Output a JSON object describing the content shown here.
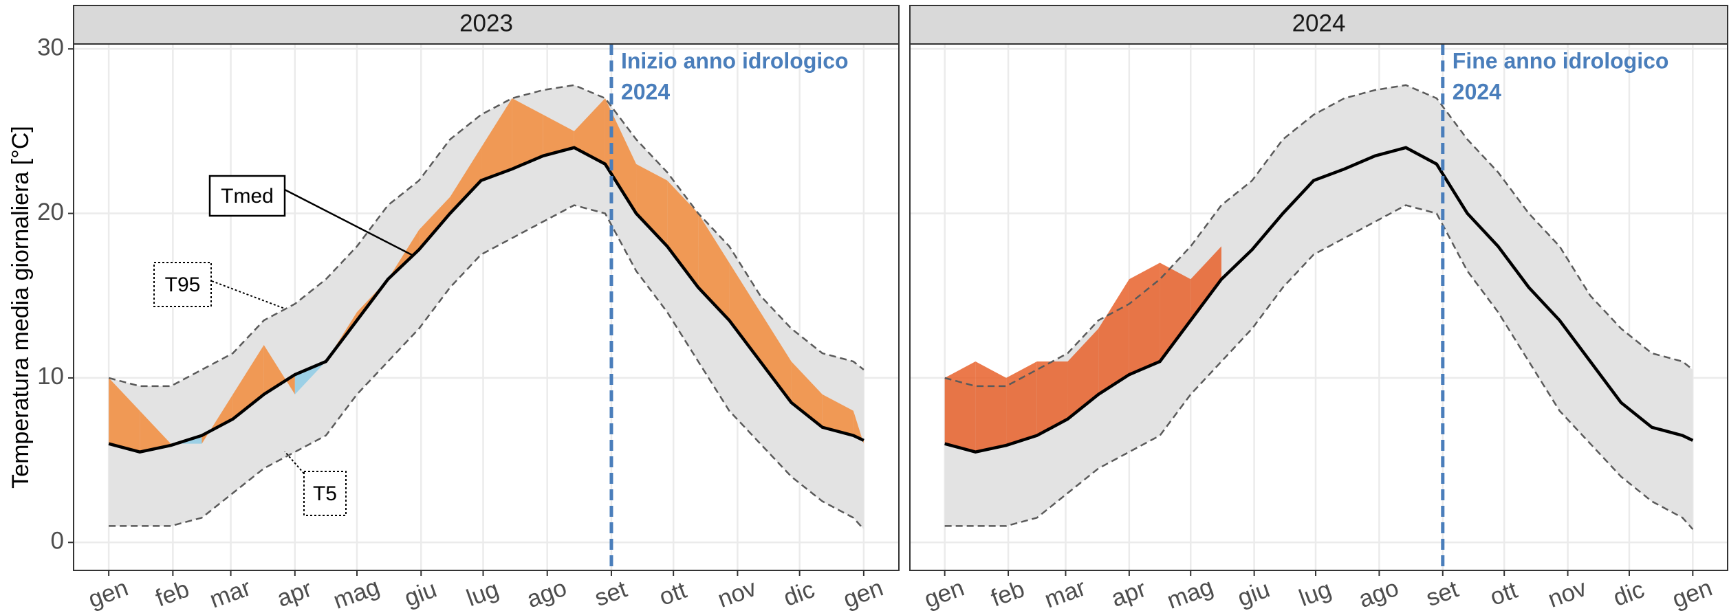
{
  "chart_data": [
    {
      "type": "line",
      "title": "2023",
      "ylabel": "Temperatura media giornaliera [°C]",
      "x": [
        0,
        15,
        30,
        45,
        60,
        75,
        90,
        105,
        120,
        135,
        150,
        165,
        180,
        195,
        210,
        225,
        240,
        255,
        270,
        285,
        300,
        315,
        330,
        345,
        360,
        365
      ],
      "xlim": [
        -17,
        382
      ],
      "xticks": [
        {
          "value": 0,
          "label": "gen"
        },
        {
          "value": 31,
          "label": "feb"
        },
        {
          "value": 59,
          "label": "mar"
        },
        {
          "value": 90,
          "label": "apr"
        },
        {
          "value": 120,
          "label": "mag"
        },
        {
          "value": 151,
          "label": "giu"
        },
        {
          "value": 181,
          "label": "lug"
        },
        {
          "value": 212,
          "label": "ago"
        },
        {
          "value": 243,
          "label": "set"
        },
        {
          "value": 273,
          "label": "ott"
        },
        {
          "value": 304,
          "label": "nov"
        },
        {
          "value": 334,
          "label": "dic"
        },
        {
          "value": 365,
          "label": "gen"
        }
      ],
      "ylim": [
        -1.7,
        30.3
      ],
      "yticks": [
        0,
        10,
        20,
        30
      ],
      "grid": true,
      "band_color": "#e3e3e3",
      "warm_color": "#f28c3c",
      "cold_color": "#8fcde6",
      "series": [
        {
          "name": "T95",
          "color": "#5a5a5a",
          "dashed": true,
          "values": [
            10,
            9.5,
            9.5,
            10.5,
            11.5,
            13.5,
            14.5,
            16,
            18,
            20.5,
            22,
            24.5,
            26,
            27,
            27.5,
            27.8,
            27,
            24.5,
            22.5,
            20,
            18,
            15,
            13,
            11.5,
            11,
            10.5
          ]
        },
        {
          "name": "Tmed",
          "color": "#000000",
          "values": [
            6.0,
            5.5,
            5.9,
            6.5,
            7.5,
            9.0,
            10.2,
            11.0,
            13.5,
            16.0,
            17.8,
            20.0,
            22.0,
            22.7,
            23.5,
            24.0,
            23.0,
            20.0,
            18.0,
            15.5,
            13.5,
            11.0,
            8.5,
            7.0,
            6.5,
            6.2
          ]
        },
        {
          "name": "T5",
          "color": "#5a5a5a",
          "dashed": true,
          "values": [
            1,
            1,
            1,
            1.5,
            3,
            4.5,
            5.5,
            6.5,
            9,
            11,
            13,
            15.5,
            17.5,
            18.5,
            19.5,
            20.5,
            20,
            16.5,
            14,
            11,
            8,
            6,
            4,
            2.5,
            1.5,
            0.8
          ]
        },
        {
          "values": [
            10,
            8,
            6,
            6,
            9,
            12,
            9,
            11,
            14,
            16,
            19,
            21,
            24,
            27,
            26,
            25,
            27,
            23,
            22,
            20,
            17,
            14,
            11,
            9,
            8,
            6
          ]
        }
      ],
      "vline": {
        "x": 243,
        "color": "#4a7ebb",
        "label": [
          "Inizio anno idrologico",
          "2024"
        ]
      }
    },
    {
      "type": "line",
      "title": "2024",
      "x": [
        0,
        15,
        30,
        45,
        60,
        75,
        90,
        105,
        120,
        135,
        150,
        165,
        180,
        195,
        210,
        225,
        240,
        255,
        270,
        285,
        300,
        315,
        330,
        345,
        360,
        365
      ],
      "xlim": [
        -17,
        382
      ],
      "xticks": [
        {
          "value": 0,
          "label": "gen"
        },
        {
          "value": 31,
          "label": "feb"
        },
        {
          "value": 59,
          "label": "mar"
        },
        {
          "value": 90,
          "label": "apr"
        },
        {
          "value": 120,
          "label": "mag"
        },
        {
          "value": 151,
          "label": "giu"
        },
        {
          "value": 181,
          "label": "lug"
        },
        {
          "value": 212,
          "label": "ago"
        },
        {
          "value": 243,
          "label": "set"
        },
        {
          "value": 273,
          "label": "ott"
        },
        {
          "value": 304,
          "label": "nov"
        },
        {
          "value": 334,
          "label": "dic"
        },
        {
          "value": 365,
          "label": "gen"
        }
      ],
      "ylim": [
        -1.7,
        30.3
      ],
      "grid": true,
      "band_color": "#e3e3e3",
      "warm_color": "#e8622c",
      "cold_color": "#8fcde6",
      "series": [
        {
          "color": "#5a5a5a",
          "dashed": true,
          "values": [
            10,
            9.5,
            9.5,
            10.5,
            11.5,
            13.5,
            14.5,
            16,
            18,
            20.5,
            22,
            24.5,
            26,
            27,
            27.5,
            27.8,
            27,
            24.5,
            22.5,
            20,
            18,
            15,
            13,
            11.5,
            11,
            10.5
          ]
        },
        {
          "color": "#000000",
          "values": [
            6.0,
            5.5,
            5.9,
            6.5,
            7.5,
            9.0,
            10.2,
            11.0,
            13.5,
            16.0,
            17.8,
            20.0,
            22.0,
            22.7,
            23.5,
            24.0,
            23.0,
            20.0,
            18.0,
            15.5,
            13.5,
            11.0,
            8.5,
            7.0,
            6.5,
            6.2
          ]
        },
        {
          "color": "#5a5a5a",
          "dashed": true,
          "values": [
            1,
            1,
            1,
            1.5,
            3,
            4.5,
            5.5,
            6.5,
            9,
            11,
            13,
            15.5,
            17.5,
            18.5,
            19.5,
            20.5,
            20,
            16.5,
            14,
            11,
            8,
            6,
            4,
            2.5,
            1.5,
            0.8
          ]
        },
        {
          "values": [
            10,
            11,
            10,
            11,
            11,
            13,
            16,
            17,
            16,
            18,
            null,
            null,
            null,
            null,
            null,
            null,
            null,
            null,
            null,
            null,
            null,
            null,
            null,
            null,
            null,
            null
          ]
        }
      ],
      "vline": {
        "x": 243,
        "color": "#4a7ebb",
        "label": [
          "Fine anno idrologico",
          "2024"
        ]
      }
    }
  ]
}
